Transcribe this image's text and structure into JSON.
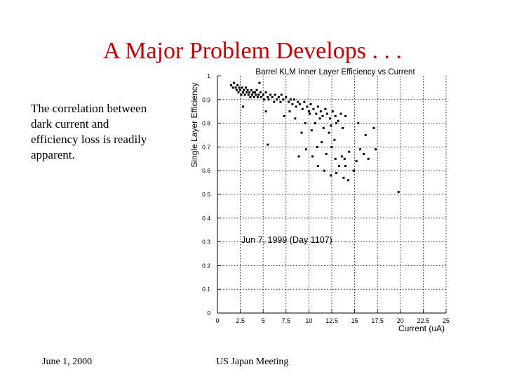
{
  "slide": {
    "title": "A Major Problem Develops . . .",
    "body": "The correlation between dark current and efficiency loss is readily apparent.",
    "footer_date": "June 1, 2000",
    "footer_event": "US Japan Meeting"
  },
  "chart_data": {
    "type": "scatter",
    "title": "Barrel KLM Inner Layer Efficiency vs Current",
    "xlabel": "Current (uA)",
    "ylabel": "Single Layer Efficiency",
    "annotation": "Jun 7, 1999 (Day 1107)",
    "xlim": [
      0,
      25
    ],
    "ylim": [
      0,
      1
    ],
    "xticks": [
      "0",
      "2.5",
      "5",
      "7.5",
      "10",
      "12.5",
      "15",
      "17.5",
      "20",
      "22.5",
      "25"
    ],
    "yticks": [
      "0",
      "0.1",
      "0.2",
      "0.3",
      "0.4",
      "0.5",
      "0.6",
      "0.7",
      "0.8",
      "0.9",
      "1"
    ],
    "grid": true,
    "series": [
      {
        "points": [
          [
            1.5,
            0.96
          ],
          [
            1.7,
            0.95
          ],
          [
            1.8,
            0.97
          ],
          [
            2.0,
            0.95
          ],
          [
            2.1,
            0.94
          ],
          [
            2.2,
            0.96
          ],
          [
            2.3,
            0.93
          ],
          [
            2.4,
            0.95
          ],
          [
            2.5,
            0.94
          ],
          [
            2.6,
            0.92
          ],
          [
            2.7,
            0.95
          ],
          [
            2.8,
            0.93
          ],
          [
            2.9,
            0.94
          ],
          [
            3.0,
            0.92
          ],
          [
            3.1,
            0.95
          ],
          [
            3.2,
            0.93
          ],
          [
            3.3,
            0.94
          ],
          [
            3.4,
            0.92
          ],
          [
            3.5,
            0.93
          ],
          [
            3.6,
            0.91
          ],
          [
            3.7,
            0.94
          ],
          [
            3.8,
            0.92
          ],
          [
            3.9,
            0.93
          ],
          [
            4.0,
            0.91
          ],
          [
            4.1,
            0.93
          ],
          [
            4.2,
            0.92
          ],
          [
            4.3,
            0.94
          ],
          [
            4.4,
            0.91
          ],
          [
            4.5,
            0.92
          ],
          [
            4.7,
            0.93
          ],
          [
            4.8,
            0.91
          ],
          [
            5.0,
            0.92
          ],
          [
            5.1,
            0.9
          ],
          [
            5.3,
            0.93
          ],
          [
            5.5,
            0.91
          ],
          [
            5.6,
            0.9
          ],
          [
            5.8,
            0.92
          ],
          [
            6.0,
            0.91
          ],
          [
            6.2,
            0.89
          ],
          [
            6.3,
            0.92
          ],
          [
            6.5,
            0.9
          ],
          [
            6.7,
            0.91
          ],
          [
            6.9,
            0.89
          ],
          [
            7.0,
            0.92
          ],
          [
            7.2,
            0.9
          ],
          [
            7.5,
            0.91
          ],
          [
            7.8,
            0.89
          ],
          [
            8.0,
            0.9
          ],
          [
            8.2,
            0.88
          ],
          [
            8.4,
            0.9
          ],
          [
            8.6,
            0.87
          ],
          [
            8.8,
            0.89
          ],
          [
            9.0,
            0.88
          ],
          [
            9.3,
            0.86
          ],
          [
            9.5,
            0.89
          ],
          [
            9.8,
            0.87
          ],
          [
            10.0,
            0.85
          ],
          [
            10.2,
            0.88
          ],
          [
            10.5,
            0.86
          ],
          [
            10.8,
            0.84
          ],
          [
            11.0,
            0.87
          ],
          [
            11.3,
            0.85
          ],
          [
            11.5,
            0.83
          ],
          [
            11.8,
            0.86
          ],
          [
            12.0,
            0.84
          ],
          [
            12.3,
            0.82
          ],
          [
            12.6,
            0.85
          ],
          [
            12.9,
            0.83
          ],
          [
            13.2,
            0.81
          ],
          [
            13.5,
            0.84
          ],
          [
            2.8,
            0.87
          ],
          [
            4.6,
            0.97
          ],
          [
            5.3,
            0.85
          ],
          [
            7.3,
            0.83
          ],
          [
            7.9,
            0.85
          ],
          [
            8.5,
            0.82
          ],
          [
            9.6,
            0.8
          ],
          [
            10.1,
            0.84
          ],
          [
            10.7,
            0.8
          ],
          [
            11.2,
            0.82
          ],
          [
            12.4,
            0.79
          ],
          [
            13.0,
            0.8
          ],
          [
            14.0,
            0.83
          ],
          [
            13.7,
            0.78
          ],
          [
            15.4,
            0.8
          ],
          [
            16.2,
            0.75
          ],
          [
            17.1,
            0.78
          ],
          [
            10.3,
            0.77
          ],
          [
            11.6,
            0.78
          ],
          [
            12.2,
            0.76
          ],
          [
            9.2,
            0.76
          ],
          [
            8.9,
            0.66
          ],
          [
            9.7,
            0.69
          ],
          [
            10.4,
            0.66
          ],
          [
            11.4,
            0.72
          ],
          [
            11.9,
            0.67
          ],
          [
            12.5,
            0.7
          ],
          [
            12.9,
            0.65
          ],
          [
            13.3,
            0.62
          ],
          [
            13.6,
            0.66
          ],
          [
            14.0,
            0.62
          ],
          [
            14.4,
            0.68
          ],
          [
            14.9,
            0.6
          ],
          [
            15.6,
            0.69
          ],
          [
            16.5,
            0.65
          ],
          [
            17.3,
            0.69
          ],
          [
            11.0,
            0.62
          ],
          [
            11.7,
            0.6
          ],
          [
            12.4,
            0.58
          ],
          [
            13.0,
            0.59
          ],
          [
            13.8,
            0.57
          ],
          [
            14.3,
            0.56
          ],
          [
            15.2,
            0.64
          ],
          [
            16.0,
            0.67
          ],
          [
            10.9,
            0.7
          ],
          [
            12.8,
            0.73
          ],
          [
            13.9,
            0.65
          ],
          [
            5.5,
            0.71
          ],
          [
            19.8,
            0.51
          ]
        ]
      }
    ]
  }
}
